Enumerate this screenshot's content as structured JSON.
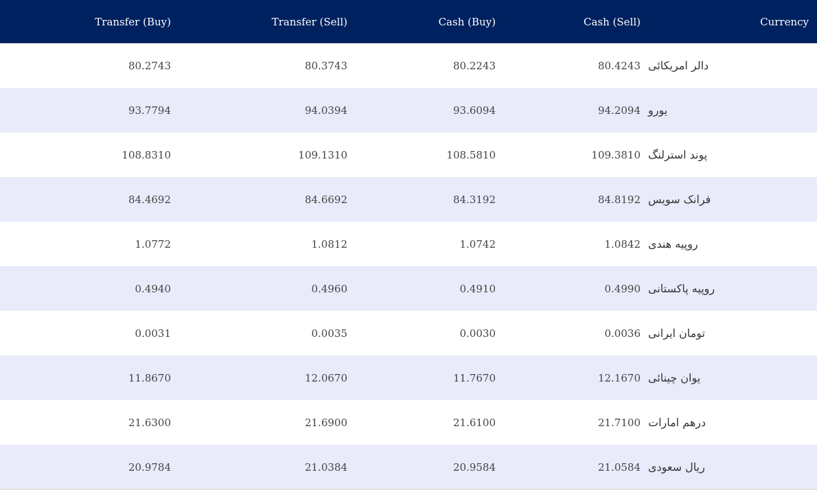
{
  "table": {
    "headers": {
      "transfer_buy": "Transfer (Buy)",
      "transfer_sell": "Transfer (Sell)",
      "cash_buy": "Cash (Buy)",
      "cash_sell": "Cash (Sell)",
      "currency": "Currency"
    },
    "rows": [
      {
        "transfer_buy": "80.2743",
        "transfer_sell": "80.3743",
        "cash_buy": "80.2243",
        "cash_sell": "80.4243",
        "currency": "دالر امریکائی"
      },
      {
        "transfer_buy": "93.7794",
        "transfer_sell": "94.0394",
        "cash_buy": "93.6094",
        "cash_sell": "94.2094",
        "currency": "یورو"
      },
      {
        "transfer_buy": "108.8310",
        "transfer_sell": "109.1310",
        "cash_buy": "108.5810",
        "cash_sell": "109.3810",
        "currency": "پوند استرلنگ"
      },
      {
        "transfer_buy": "84.4692",
        "transfer_sell": "84.6692",
        "cash_buy": "84.3192",
        "cash_sell": "84.8192",
        "currency": "فرانک سویس"
      },
      {
        "transfer_buy": "1.0772",
        "transfer_sell": "1.0812",
        "cash_buy": "1.0742",
        "cash_sell": "1.0842",
        "currency": "روپیه هندی"
      },
      {
        "transfer_buy": "0.4940",
        "transfer_sell": "0.4960",
        "cash_buy": "0.4910",
        "cash_sell": "0.4990",
        "currency": "روپیه پاکستانی"
      },
      {
        "transfer_buy": "0.0031",
        "transfer_sell": "0.0035",
        "cash_buy": "0.0030",
        "cash_sell": "0.0036",
        "currency": "تومان ایرانی"
      },
      {
        "transfer_buy": "11.8670",
        "transfer_sell": "12.0670",
        "cash_buy": "11.7670",
        "cash_sell": "12.1670",
        "currency": "یوان چینائی"
      },
      {
        "transfer_buy": "21.6300",
        "transfer_sell": "21.6900",
        "cash_buy": "21.6100",
        "cash_sell": "21.7100",
        "currency": "درهم امارات"
      },
      {
        "transfer_buy": "20.9784",
        "transfer_sell": "21.0384",
        "cash_buy": "20.9584",
        "cash_sell": "21.0584",
        "currency": "ریال سعودی"
      }
    ]
  },
  "colors": {
    "header_bg": "#00215f",
    "header_text": "#ffffff",
    "row_alt_bg": "#e9ebfb",
    "row_bg": "#ffffff",
    "cell_text": "#444444"
  }
}
